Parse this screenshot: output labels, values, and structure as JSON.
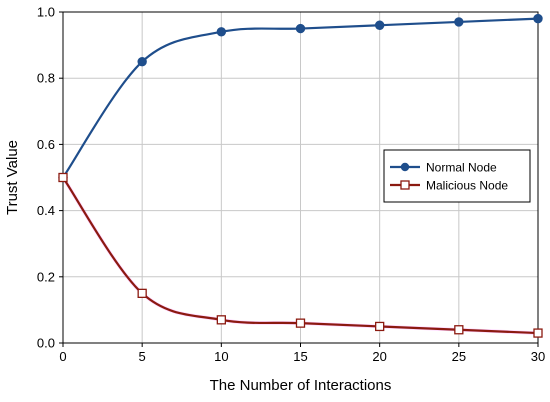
{
  "chart_data": {
    "type": "line",
    "title": "",
    "xlabel": "The Number of Interactions",
    "ylabel": "Trust Value",
    "xlim": [
      0,
      30
    ],
    "ylim": [
      0,
      1.0
    ],
    "xticks": [
      0,
      5,
      10,
      15,
      20,
      25,
      30
    ],
    "yticks": [
      0.0,
      0.2,
      0.4,
      0.6,
      0.8,
      1.0
    ],
    "xtick_labels": [
      "0",
      "5",
      "10",
      "15",
      "20",
      "25",
      "30"
    ],
    "ytick_labels": [
      "0.0",
      "0.2",
      "0.4",
      "0.6",
      "0.8",
      "1.0"
    ],
    "grid": true,
    "legend_position": "right-center",
    "series": [
      {
        "name": "Normal Node",
        "color": "#1f4e8c",
        "marker": "filled-circle",
        "x": [
          0,
          5,
          10,
          15,
          20,
          25,
          30
        ],
        "y": [
          0.5,
          0.85,
          0.94,
          0.95,
          0.96,
          0.97,
          0.98
        ]
      },
      {
        "name": "Malicious Node",
        "color": "#8b1a10",
        "marker": "open-square",
        "x": [
          0,
          5,
          10,
          15,
          20,
          25,
          30
        ],
        "y": [
          0.5,
          0.15,
          0.07,
          0.06,
          0.05,
          0.04,
          0.03
        ]
      }
    ]
  }
}
